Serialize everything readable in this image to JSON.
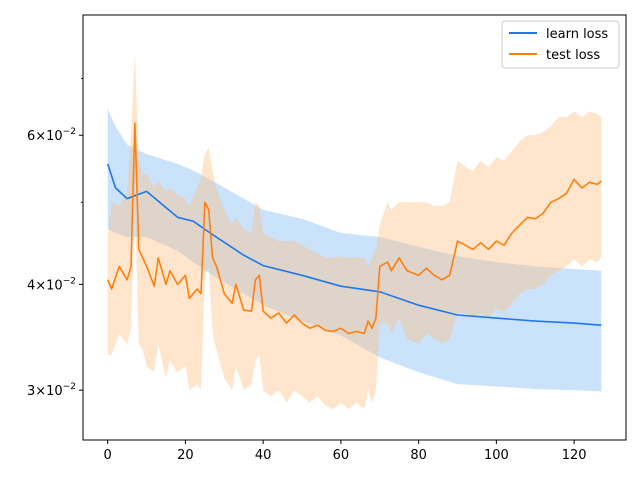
{
  "chart_data": {
    "type": "line",
    "title": "",
    "xlabel": "",
    "ylabel": "",
    "xlim": [
      -6.35,
      133.35
    ],
    "ylim": [
      0.0262,
      0.0832
    ],
    "yscale": "log",
    "grid": false,
    "legend_position": "top-right",
    "x_ticks": [
      {
        "value": 0,
        "label": "0"
      },
      {
        "value": 20,
        "label": "20"
      },
      {
        "value": 40,
        "label": "40"
      },
      {
        "value": 60,
        "label": "60"
      },
      {
        "value": 80,
        "label": "80"
      },
      {
        "value": 100,
        "label": "100"
      },
      {
        "value": 120,
        "label": "120"
      }
    ],
    "y_ticks_major": [
      {
        "value": 0.03,
        "mantissa": "3",
        "exponent": "−2"
      },
      {
        "value": 0.04,
        "mantissa": "4",
        "exponent": "−2"
      },
      {
        "value": 0.06,
        "mantissa": "6",
        "exponent": "−2"
      }
    ],
    "y_ticks_minor": [
      0.05,
      0.07
    ],
    "series": [
      {
        "name": "learn loss",
        "color": "#1f77e8",
        "band_color": "#7ab8f5",
        "x": [
          0,
          2,
          5,
          10,
          18,
          22,
          27,
          35,
          40,
          50,
          60,
          70,
          80,
          90,
          100,
          110,
          120,
          127
        ],
        "y": [
          0.0555,
          0.052,
          0.0505,
          0.0515,
          0.048,
          0.0475,
          0.0458,
          0.0433,
          0.0421,
          0.041,
          0.0398,
          0.0392,
          0.0378,
          0.0368,
          0.0365,
          0.0362,
          0.036,
          0.0358
        ],
        "band_upper": [
          0.0645,
          0.0615,
          0.0585,
          0.057,
          0.0555,
          0.0545,
          0.053,
          0.0505,
          0.049,
          0.0478,
          0.046,
          0.0455,
          0.0443,
          0.0432,
          0.0425,
          0.042,
          0.0417,
          0.0415
        ],
        "band_lower": [
          0.0465,
          0.046,
          0.0455,
          0.0455,
          0.0438,
          0.0425,
          0.041,
          0.039,
          0.0378,
          0.0362,
          0.0348,
          0.0328,
          0.0315,
          0.0305,
          0.0303,
          0.0301,
          0.03,
          0.0299
        ]
      },
      {
        "name": "test loss",
        "color": "#ff7f0e",
        "band_color": "#ffbf80",
        "x": [
          0,
          1,
          3,
          5,
          6,
          7,
          8,
          9,
          10,
          12,
          13,
          15,
          16,
          18,
          20,
          21,
          23,
          24,
          25,
          26,
          27,
          28,
          30,
          32,
          33,
          35,
          37,
          38,
          39,
          40,
          42,
          44,
          46,
          48,
          50,
          52,
          54,
          56,
          58,
          60,
          62,
          64,
          66,
          67,
          68,
          69,
          70,
          72,
          73,
          75,
          77,
          80,
          82,
          84,
          86,
          88,
          90,
          92,
          94,
          96,
          98,
          100,
          102,
          104,
          106,
          108,
          110,
          112,
          114,
          116,
          118,
          120,
          122,
          124,
          126,
          127
        ],
        "y": [
          0.0405,
          0.0395,
          0.042,
          0.0405,
          0.042,
          0.062,
          0.044,
          0.043,
          0.042,
          0.0398,
          0.043,
          0.04,
          0.0415,
          0.04,
          0.041,
          0.0385,
          0.0395,
          0.039,
          0.05,
          0.049,
          0.043,
          0.042,
          0.039,
          0.038,
          0.04,
          0.0373,
          0.0372,
          0.0405,
          0.041,
          0.0372,
          0.0365,
          0.037,
          0.036,
          0.0368,
          0.036,
          0.0355,
          0.0358,
          0.0353,
          0.0352,
          0.0355,
          0.035,
          0.0352,
          0.035,
          0.0362,
          0.0355,
          0.0365,
          0.042,
          0.0425,
          0.0415,
          0.043,
          0.0415,
          0.041,
          0.0418,
          0.041,
          0.0405,
          0.041,
          0.045,
          0.0445,
          0.044,
          0.0448,
          0.044,
          0.045,
          0.0445,
          0.046,
          0.047,
          0.048,
          0.0478,
          0.0485,
          0.05,
          0.0505,
          0.0512,
          0.0532,
          0.052,
          0.0528,
          0.0525,
          0.053
        ],
        "band_upper": [
          0.0455,
          0.05,
          0.0495,
          0.0515,
          0.06,
          0.075,
          0.056,
          0.054,
          0.054,
          0.052,
          0.053,
          0.0515,
          0.052,
          0.051,
          0.0505,
          0.0495,
          0.052,
          0.0535,
          0.057,
          0.058,
          0.0545,
          0.052,
          0.049,
          0.047,
          0.048,
          0.0465,
          0.046,
          0.05,
          0.0495,
          0.046,
          0.0455,
          0.045,
          0.045,
          0.045,
          0.0445,
          0.044,
          0.0435,
          0.043,
          0.043,
          0.0432,
          0.043,
          0.043,
          0.043,
          0.042,
          0.043,
          0.044,
          0.047,
          0.05,
          0.049,
          0.05,
          0.05,
          0.05,
          0.05,
          0.0495,
          0.0495,
          0.05,
          0.056,
          0.055,
          0.0545,
          0.056,
          0.055,
          0.0565,
          0.056,
          0.0575,
          0.059,
          0.06,
          0.06,
          0.0605,
          0.0615,
          0.063,
          0.063,
          0.064,
          0.063,
          0.064,
          0.0635,
          0.063
        ],
        "band_lower": [
          0.033,
          0.033,
          0.035,
          0.034,
          0.0355,
          0.05,
          0.034,
          0.0335,
          0.032,
          0.0315,
          0.034,
          0.031,
          0.0325,
          0.0315,
          0.032,
          0.03,
          0.0305,
          0.03,
          0.041,
          0.042,
          0.035,
          0.0335,
          0.031,
          0.03,
          0.032,
          0.03,
          0.0305,
          0.0325,
          0.033,
          0.03,
          0.0295,
          0.03,
          0.029,
          0.03,
          0.0295,
          0.029,
          0.0295,
          0.0288,
          0.0285,
          0.029,
          0.0285,
          0.029,
          0.0285,
          0.03,
          0.029,
          0.03,
          0.036,
          0.036,
          0.035,
          0.0365,
          0.0345,
          0.034,
          0.035,
          0.0345,
          0.034,
          0.0345,
          0.037,
          0.037,
          0.0365,
          0.037,
          0.0365,
          0.0375,
          0.037,
          0.038,
          0.039,
          0.0395,
          0.0395,
          0.04,
          0.041,
          0.0415,
          0.042,
          0.0428,
          0.042,
          0.0428,
          0.0425,
          0.043
        ]
      }
    ]
  }
}
